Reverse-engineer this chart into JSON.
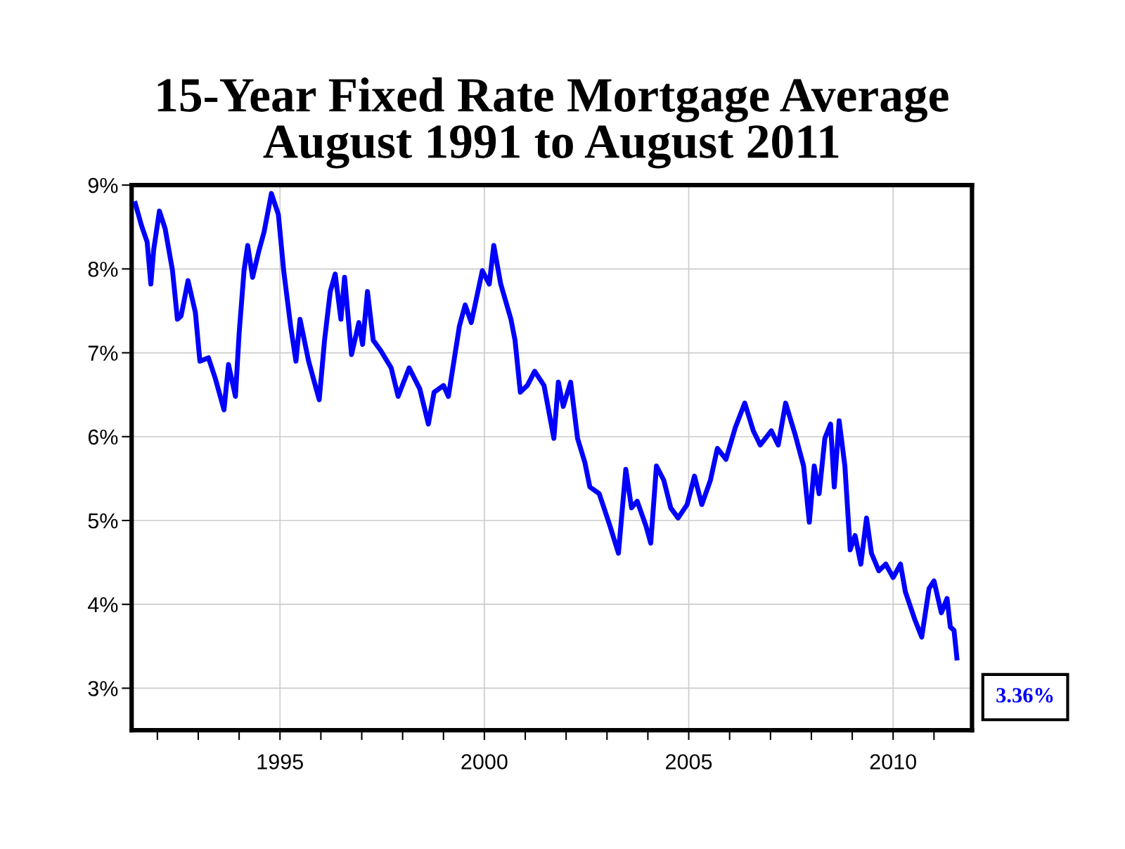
{
  "chart_data": {
    "type": "line",
    "title": "15-Year Fixed Rate Mortgage Average\nAugust 1991 to August 2011",
    "x": [
      1991.46,
      1991.61,
      1991.75,
      1991.84,
      1991.91,
      1992.05,
      1992.19,
      1992.37,
      1992.49,
      1992.58,
      1992.75,
      1992.93,
      1993.04,
      1993.25,
      1993.42,
      1993.63,
      1993.74,
      1993.91,
      1994.0,
      1994.12,
      1994.21,
      1994.33,
      1994.47,
      1994.61,
      1994.79,
      1994.96,
      1995.09,
      1995.26,
      1995.39,
      1995.49,
      1995.7,
      1995.96,
      1996.09,
      1996.23,
      1996.35,
      1996.49,
      1996.58,
      1996.75,
      1996.93,
      1997.02,
      1997.14,
      1997.28,
      1997.46,
      1997.72,
      1997.89,
      1998.16,
      1998.42,
      1998.63,
      1998.77,
      1999.0,
      1999.12,
      1999.39,
      1999.53,
      1999.68,
      1999.95,
      2000.12,
      2000.23,
      2000.4,
      2000.65,
      2000.75,
      2000.88,
      2001.05,
      2001.23,
      2001.46,
      2001.7,
      2001.81,
      2001.93,
      2002.11,
      2002.28,
      2002.46,
      2002.58,
      2002.81,
      2003.07,
      2003.28,
      2003.46,
      2003.6,
      2003.74,
      2003.95,
      2004.07,
      2004.21,
      2004.39,
      2004.56,
      2004.74,
      2004.96,
      2005.14,
      2005.32,
      2005.53,
      2005.7,
      2005.91,
      2006.14,
      2006.37,
      2006.58,
      2006.75,
      2007.02,
      2007.19,
      2007.37,
      2007.6,
      2007.81,
      2007.95,
      2008.07,
      2008.19,
      2008.33,
      2008.47,
      2008.56,
      2008.68,
      2008.82,
      2008.95,
      2009.07,
      2009.21,
      2009.35,
      2009.47,
      2009.65,
      2009.82,
      2010.0,
      2010.18,
      2010.3,
      2010.53,
      2010.7,
      2010.88,
      2011.0,
      2011.18,
      2011.32,
      2011.4,
      2011.49,
      2011.56
    ],
    "series": [
      {
        "color": "#0000ff",
        "values": [
          8.78,
          8.52,
          8.32,
          7.82,
          8.23,
          8.69,
          8.48,
          7.98,
          7.4,
          7.44,
          7.86,
          7.48,
          6.9,
          6.94,
          6.69,
          6.32,
          6.86,
          6.48,
          7.23,
          7.98,
          8.28,
          7.9,
          8.19,
          8.44,
          8.9,
          8.65,
          7.98,
          7.32,
          6.9,
          7.4,
          6.9,
          6.44,
          7.15,
          7.73,
          7.94,
          7.4,
          7.9,
          6.98,
          7.36,
          7.1,
          7.73,
          7.15,
          7.03,
          6.82,
          6.48,
          6.82,
          6.57,
          6.15,
          6.53,
          6.61,
          6.48,
          7.32,
          7.57,
          7.36,
          7.98,
          7.82,
          8.28,
          7.82,
          7.4,
          7.15,
          6.53,
          6.61,
          6.78,
          6.61,
          5.98,
          6.65,
          6.36,
          6.65,
          5.98,
          5.69,
          5.4,
          5.32,
          4.94,
          4.61,
          5.61,
          5.15,
          5.23,
          4.94,
          4.73,
          5.65,
          5.48,
          5.15,
          5.03,
          5.19,
          5.53,
          5.19,
          5.48,
          5.86,
          5.73,
          6.11,
          6.4,
          6.07,
          5.9,
          6.07,
          5.9,
          6.4,
          6.03,
          5.65,
          4.98,
          5.65,
          5.32,
          5.98,
          6.15,
          5.4,
          6.19,
          5.65,
          4.65,
          4.82,
          4.48,
          5.03,
          4.61,
          4.4,
          4.48,
          4.32,
          4.48,
          4.15,
          3.82,
          3.61,
          4.19,
          4.28,
          3.9,
          4.07,
          3.73,
          3.69,
          3.36
        ]
      }
    ],
    "xlim": [
      1991.37,
      2011.93
    ],
    "xticks": [
      {
        "value": 1992,
        "label": null
      },
      {
        "value": 1993,
        "label": null
      },
      {
        "value": 1994,
        "label": null
      },
      1995,
      {
        "value": 1996,
        "label": null
      },
      {
        "value": 1997,
        "label": null
      },
      {
        "value": 1998,
        "label": null
      },
      {
        "value": 1999,
        "label": null
      },
      2000,
      {
        "value": 2001,
        "label": null
      },
      {
        "value": 2002,
        "label": null
      },
      {
        "value": 2003,
        "label": null
      },
      {
        "value": 2004,
        "label": null
      },
      2005,
      {
        "value": 2006,
        "label": null
      },
      {
        "value": 2007,
        "label": null
      },
      {
        "value": 2008,
        "label": null
      },
      {
        "value": 2009,
        "label": null
      },
      2010,
      {
        "value": 2011,
        "label": null
      }
    ],
    "ylim": [
      2.5,
      9
    ],
    "yticks": [
      {
        "value": 3,
        "label": "3%"
      },
      {
        "value": 4,
        "label": "4%"
      },
      {
        "value": 5,
        "label": "5%"
      },
      {
        "value": 6,
        "label": "6%"
      },
      {
        "value": 7,
        "label": "7%"
      },
      {
        "value": 8,
        "label": "8%"
      },
      {
        "value": 9,
        "label": "9%"
      }
    ],
    "grid": true,
    "line_style": "solid",
    "marker": "none",
    "annotations": [
      {
        "text": "3.36%",
        "x": 2011.56,
        "y": 3.36
      }
    ]
  }
}
